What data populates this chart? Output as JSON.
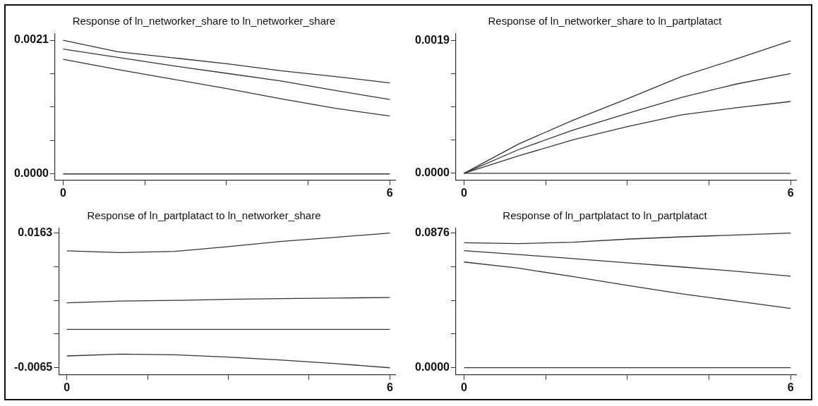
{
  "chart_data": [
    {
      "type": "line",
      "title": "Response of ln_networker_share to ln_networker_share",
      "marker": "none",
      "x": [
        0,
        1,
        2,
        3,
        4,
        5,
        6
      ],
      "xlim": [
        -0.15,
        6.1
      ],
      "xticks": [
        {
          "value": 0,
          "label": "0"
        },
        {
          "value": 1.5,
          "label": null
        },
        {
          "value": 3,
          "label": null
        },
        {
          "value": 4.5,
          "label": null
        },
        {
          "value": 6,
          "label": "6"
        }
      ],
      "ylim": [
        -0.0001,
        0.0022
      ],
      "yticks": [
        {
          "value": 0,
          "label": "0.0000"
        },
        {
          "value": 0.000525,
          "label": null
        },
        {
          "value": 0.00105,
          "label": null
        },
        {
          "value": 0.001575,
          "label": null
        },
        {
          "value": 0.0021,
          "label": "0.0021"
        }
      ],
      "series": [
        {
          "color": "#333333",
          "values": [
            0.0021,
            0.00192,
            0.001825,
            0.00173,
            0.00162,
            0.00153,
            0.00143
          ]
        },
        {
          "color": "#333333",
          "values": [
            0.00196,
            0.00183,
            0.0017,
            0.00158,
            0.00146,
            0.00131,
            0.00117
          ]
        },
        {
          "color": "#333333",
          "values": [
            0.0018,
            0.00164,
            0.00149,
            0.00134,
            0.00118,
            0.00103,
            0.00091
          ]
        },
        {
          "color": "#333333",
          "values": [
            0,
            0,
            0,
            0,
            0,
            0,
            0
          ]
        }
      ]
    },
    {
      "type": "line",
      "title": "Response of ln_networker_share to ln_partplatact",
      "marker": "none",
      "x": [
        0,
        1,
        2,
        3,
        4,
        5,
        6
      ],
      "xlim": [
        -0.15,
        6.1
      ],
      "xticks": [
        {
          "value": 0,
          "label": "0"
        },
        {
          "value": 1.5,
          "label": null
        },
        {
          "value": 3,
          "label": null
        },
        {
          "value": 4.5,
          "label": null
        },
        {
          "value": 6,
          "label": "6"
        }
      ],
      "ylim": [
        -0.0001,
        0.002
      ],
      "yticks": [
        {
          "value": 0,
          "label": "0.0000"
        },
        {
          "value": 0.000475,
          "label": null
        },
        {
          "value": 0.00095,
          "label": null
        },
        {
          "value": 0.001425,
          "label": null
        },
        {
          "value": 0.0019,
          "label": "0.0019"
        }
      ],
      "series": [
        {
          "color": "#333333",
          "values": [
            0,
            0.00042,
            0.00076,
            0.00107,
            0.00139,
            0.00164,
            0.0019
          ]
        },
        {
          "color": "#333333",
          "values": [
            0,
            0.00034,
            0.00062,
            0.00086,
            0.00109,
            0.00128,
            0.00143
          ]
        },
        {
          "color": "#333333",
          "values": [
            0,
            0.00025,
            0.00048,
            0.00067,
            0.00084,
            0.00094,
            0.00103
          ]
        },
        {
          "color": "#333333",
          "values": [
            0,
            0,
            0,
            0,
            0,
            0,
            0
          ]
        }
      ]
    },
    {
      "type": "line",
      "title": "Response of ln_partplatact to ln_networker_share",
      "marker": "none",
      "x": [
        0,
        1,
        2,
        3,
        4,
        5,
        6
      ],
      "xlim": [
        -0.15,
        6.1
      ],
      "xticks": [
        {
          "value": 0,
          "label": "0"
        },
        {
          "value": 1.5,
          "label": null
        },
        {
          "value": 3,
          "label": null
        },
        {
          "value": 4.5,
          "label": null
        },
        {
          "value": 6,
          "label": "6"
        }
      ],
      "ylim": [
        -0.0077,
        0.0171
      ],
      "yticks": [
        {
          "value": -0.0065,
          "label": "-0.0065"
        },
        {
          "value": -0.0008,
          "label": null
        },
        {
          "value": 0.0049,
          "label": null
        },
        {
          "value": 0.0106,
          "label": null
        },
        {
          "value": 0.0163,
          "label": "0.0163"
        }
      ],
      "series": [
        {
          "color": "#333333",
          "values": [
            0.0133,
            0.013,
            0.0132,
            0.014,
            0.0149,
            0.0156,
            0.0163
          ]
        },
        {
          "color": "#333333",
          "values": [
            0.0045,
            0.0048,
            0.0049,
            0.0051,
            0.0052,
            0.0053,
            0.0054
          ]
        },
        {
          "color": "#333333",
          "values": [
            0,
            0,
            0,
            0,
            0,
            0,
            0
          ]
        },
        {
          "color": "#333333",
          "values": [
            -0.0045,
            -0.0042,
            -0.0043,
            -0.0047,
            -0.0052,
            -0.0058,
            -0.0065
          ]
        }
      ]
    },
    {
      "type": "line",
      "title": "Response of ln_partplatact to ln_partplatact",
      "marker": "none",
      "x": [
        0,
        1,
        2,
        3,
        4,
        5,
        6
      ],
      "xlim": [
        -0.15,
        6.1
      ],
      "xticks": [
        {
          "value": 0,
          "label": "0"
        },
        {
          "value": 1.5,
          "label": null
        },
        {
          "value": 3,
          "label": null
        },
        {
          "value": 4.5,
          "label": null
        },
        {
          "value": 6,
          "label": "6"
        }
      ],
      "ylim": [
        -0.0047,
        0.0906
      ],
      "yticks": [
        {
          "value": 0,
          "label": "0.0000"
        },
        {
          "value": 0.0219,
          "label": null
        },
        {
          "value": 0.0438,
          "label": null
        },
        {
          "value": 0.0657,
          "label": null
        },
        {
          "value": 0.0876,
          "label": "0.0876"
        }
      ],
      "series": [
        {
          "color": "#333333",
          "values": [
            0.0813,
            0.0807,
            0.0816,
            0.0836,
            0.0851,
            0.0863,
            0.0876
          ]
        },
        {
          "color": "#333333",
          "values": [
            0.0761,
            0.0736,
            0.0709,
            0.0682,
            0.0655,
            0.0627,
            0.0595
          ]
        },
        {
          "color": "#333333",
          "values": [
            0.0687,
            0.0647,
            0.0592,
            0.0535,
            0.048,
            0.0433,
            0.0385
          ]
        },
        {
          "color": "#333333",
          "values": [
            0,
            0,
            0,
            0,
            0,
            0,
            0
          ]
        }
      ]
    }
  ]
}
